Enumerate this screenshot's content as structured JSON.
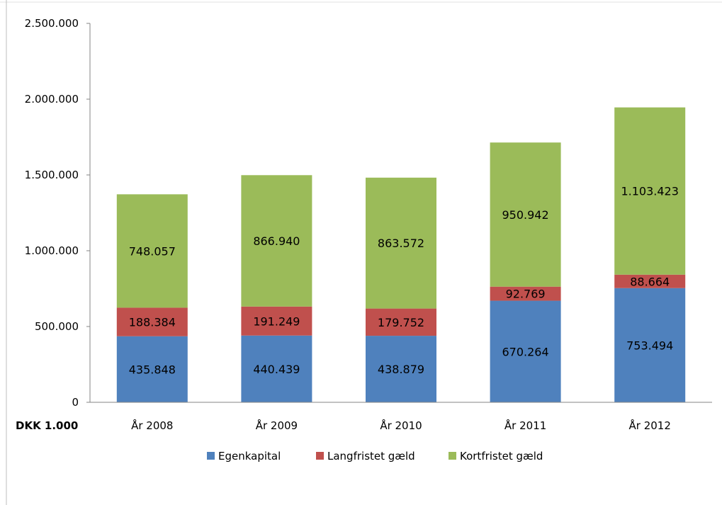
{
  "chart_data": {
    "type": "bar",
    "stacked": true,
    "categories": [
      "År 2008",
      "År 2009",
      "År 2010",
      "År 2011",
      "År 2012"
    ],
    "series": [
      {
        "name": "Egenkapital",
        "color": "#4F81BD",
        "values": [
          435848,
          440439,
          438879,
          670264,
          753494
        ],
        "labels": [
          "435.848",
          "440.439",
          "438.879",
          "670.264",
          "753.494"
        ]
      },
      {
        "name": "Langfristet gæld",
        "color": "#C0504D",
        "values": [
          188384,
          191249,
          179752,
          92769,
          88664
        ],
        "labels": [
          "188.384",
          "191.249",
          "179.752",
          "92.769",
          "88.664"
        ]
      },
      {
        "name": "Kortfristet gæld",
        "color": "#9BBB59",
        "values": [
          748057,
          866940,
          863572,
          950942,
          1103423
        ],
        "labels": [
          "748.057",
          "866.940",
          "863.572",
          "950.942",
          "1.103.423"
        ]
      }
    ],
    "ylim": [
      0,
      2500000
    ],
    "yticks": [
      0,
      500000,
      1000000,
      1500000,
      2000000,
      2500000
    ],
    "ytick_labels": [
      "0",
      "500.000",
      "1.000.000",
      "1.500.000",
      "2.000.000",
      "2.500.000"
    ],
    "unit_label": "DKK 1.000",
    "grid": false,
    "legend_position": "bottom"
  }
}
